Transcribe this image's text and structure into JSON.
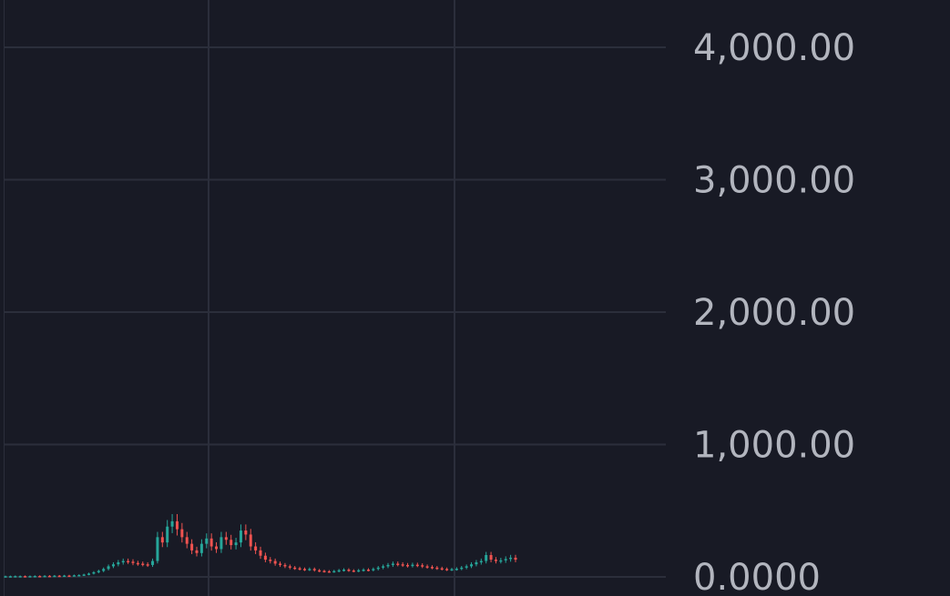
{
  "colors": {
    "background": "#181a25",
    "grid": "#2b2e3b",
    "up": "#26a69a",
    "down": "#ef5350",
    "axis_text": "#b2b5be"
  },
  "chart_data": {
    "type": "candlestick",
    "title": "",
    "xlabel": "",
    "ylabel": "",
    "ylim": [
      0,
      4300
    ],
    "y_axis_position": "right",
    "grid": true,
    "y_ticks": [
      {
        "value": 4000,
        "label": "4,000.00"
      },
      {
        "value": 3000,
        "label": "3,000.00"
      },
      {
        "value": 2000,
        "label": "2,000.00"
      },
      {
        "value": 1000,
        "label": "1,000.00"
      },
      {
        "value": 0,
        "label": "0.0000"
      }
    ],
    "x_grid_count": 2,
    "close_series": [
      5,
      5,
      6,
      6,
      5,
      6,
      7,
      6,
      8,
      7,
      9,
      8,
      10,
      9,
      12,
      14,
      18,
      25,
      35,
      45,
      60,
      80,
      95,
      110,
      120,
      115,
      105,
      100,
      95,
      90,
      120,
      300,
      260,
      380,
      420,
      360,
      300,
      250,
      200,
      180,
      250,
      290,
      230,
      210,
      300,
      280,
      240,
      260,
      350,
      320,
      230,
      200,
      160,
      130,
      120,
      100,
      90,
      80,
      70,
      65,
      60,
      55,
      60,
      50,
      45,
      42,
      40,
      44,
      50,
      55,
      48,
      45,
      50,
      55,
      52,
      60,
      70,
      80,
      90,
      100,
      95,
      90,
      85,
      92,
      88,
      80,
      75,
      70,
      65,
      60,
      55,
      58,
      62,
      70,
      80,
      95,
      110,
      120,
      165,
      130,
      120,
      125,
      135,
      145,
      130
    ]
  }
}
